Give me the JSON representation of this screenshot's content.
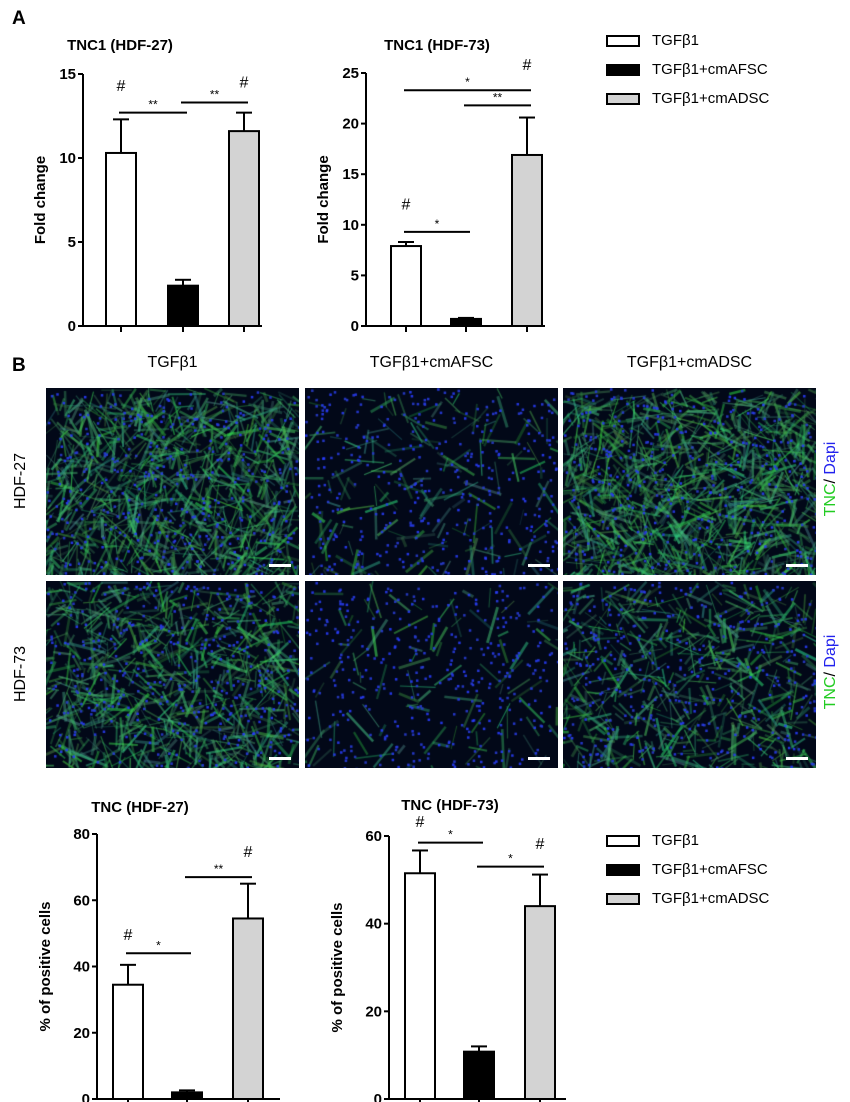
{
  "panels": {
    "a": "A",
    "b": "B"
  },
  "legend": {
    "items": [
      {
        "label": "TGFβ1",
        "color": "#ffffff"
      },
      {
        "label": "TGFβ1+cmAFSC",
        "color": "#000000"
      },
      {
        "label": "TGFβ1+cmADSC",
        "color": "#d3d3d3"
      }
    ]
  },
  "microscopy": {
    "columns": [
      "TGFβ1",
      "TGFβ1+cmAFSC",
      "TGFβ1+cmADSC"
    ],
    "rows": [
      "HDF-27",
      "HDF-73"
    ],
    "stain": {
      "tnc": "TNC",
      "sep": "/ ",
      "dapi": "Dapi",
      "tnc_color": "#22cc22",
      "dapi_color": "#2222ee"
    }
  },
  "chart_data": [
    {
      "type": "bar",
      "title": "TNC1 (HDF-27)",
      "ylabel": "Fold change",
      "xlabel": "",
      "categories": [
        "TGFβ1",
        "TGFβ1+cmAFSC",
        "TGFβ1+cmADSC"
      ],
      "values": [
        10.3,
        2.4,
        11.6
      ],
      "errors": [
        2.0,
        0.35,
        1.1
      ],
      "ylim": [
        0,
        15
      ],
      "yticks": [
        "0",
        "5",
        "10",
        "15"
      ],
      "brackets": [
        {
          "from": 0,
          "to": 1,
          "y": 12.7,
          "label": "**"
        },
        {
          "from": 1,
          "to": 2,
          "y": 13.3,
          "label": "**"
        }
      ],
      "marks": [
        {
          "bar": 0,
          "y": 14.0,
          "label": "#"
        },
        {
          "bar": 2,
          "y": 14.2,
          "label": "#"
        }
      ]
    },
    {
      "type": "bar",
      "title": "TNC1 (HDF-73)",
      "ylabel": "Fold change",
      "xlabel": "",
      "categories": [
        "TGFβ1",
        "TGFβ1+cmAFSC",
        "TGFβ1+cmADSC"
      ],
      "values": [
        7.9,
        0.7,
        16.9
      ],
      "errors": [
        0.4,
        0.1,
        3.7
      ],
      "ylim": [
        0,
        25
      ],
      "yticks": [
        "0",
        "5",
        "10",
        "15",
        "20",
        "25"
      ],
      "brackets": [
        {
          "from": 0,
          "to": 2,
          "y": 23.3,
          "label": "*"
        },
        {
          "from": 1,
          "to": 2,
          "y": 21.8,
          "label": "**"
        },
        {
          "from": 0,
          "to": 1,
          "y": 9.3,
          "label": "*"
        }
      ],
      "marks": [
        {
          "bar": 0,
          "y": 11.5,
          "label": "#"
        },
        {
          "bar": 2,
          "y": 25.3,
          "label": "#"
        }
      ]
    },
    {
      "type": "bar",
      "title": "TNC (HDF-27)",
      "ylabel": "% of positive cells",
      "xlabel": "",
      "categories": [
        "TGFβ1",
        "TGFβ1+cmAFSC",
        "TGFβ1+cmADSC"
      ],
      "values": [
        34.5,
        2.0,
        54.5
      ],
      "errors": [
        6.0,
        0.6,
        10.5
      ],
      "ylim": [
        0,
        80
      ],
      "yticks": [
        "0",
        "20",
        "40",
        "60",
        "80"
      ],
      "brackets": [
        {
          "from": 0,
          "to": 1,
          "y": 44,
          "label": "*"
        },
        {
          "from": 1,
          "to": 2,
          "y": 67,
          "label": "**"
        }
      ],
      "marks": [
        {
          "bar": 0,
          "y": 48,
          "label": "#"
        },
        {
          "bar": 2,
          "y": 73,
          "label": "#"
        }
      ]
    },
    {
      "type": "bar",
      "title": "TNC (HDF-73)",
      "ylabel": "% of positive cells",
      "xlabel": "",
      "categories": [
        "TGFβ1",
        "TGFβ1+cmAFSC",
        "TGFβ1+cmADSC"
      ],
      "values": [
        51.5,
        10.8,
        44.0
      ],
      "errors": [
        5.2,
        1.2,
        7.2
      ],
      "ylim": [
        0,
        60
      ],
      "yticks": [
        "0",
        "20",
        "40",
        "60"
      ],
      "brackets": [
        {
          "from": 0,
          "to": 1,
          "y": 58.5,
          "label": "*"
        },
        {
          "from": 1,
          "to": 2,
          "y": 53.0,
          "label": "*"
        }
      ],
      "marks": [
        {
          "bar": 0,
          "y": 62,
          "label": "#"
        },
        {
          "bar": 2,
          "y": 57,
          "label": "#"
        }
      ]
    }
  ]
}
